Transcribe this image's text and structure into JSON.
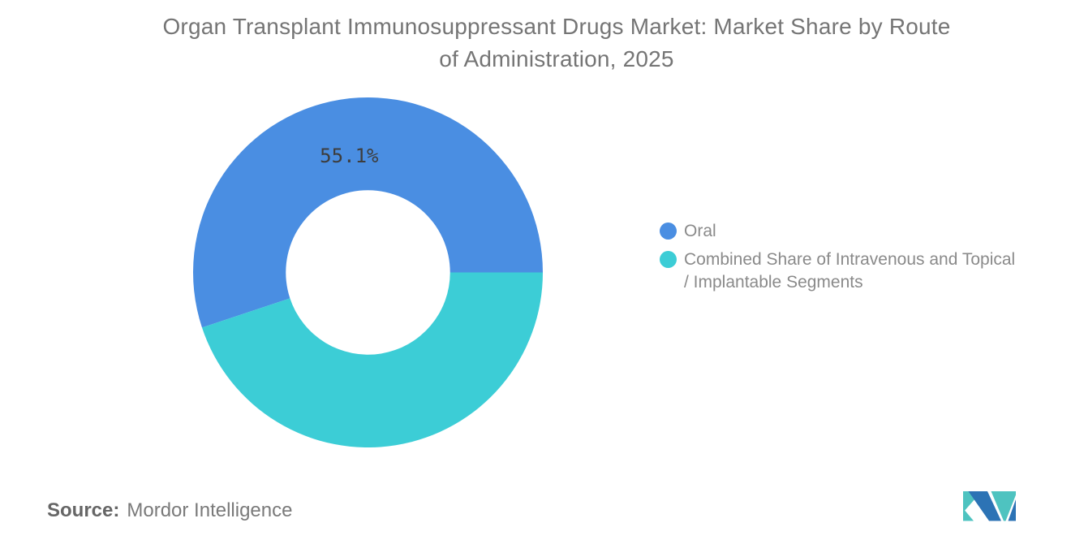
{
  "title": {
    "line1": "Organ Transplant Immunosuppressant Drugs Market: Market Share by Route",
    "line2": "of Administration, 2025"
  },
  "chart_data": {
    "type": "pie",
    "donut": true,
    "title": "Organ Transplant Immunosuppressant Drugs Market: Market Share by Route of Administration, 2025",
    "start_angle_deg": 0,
    "direction": "counterclockwise",
    "inner_radius_pct": 47,
    "legend_position": "right",
    "slices": [
      {
        "label": "Oral",
        "value": 55.1,
        "data_label": "55.1%",
        "show_data_label": true,
        "color": "#4A8EE2"
      },
      {
        "label": "Combined Share of Intravenous and Topical / Implantable Segments",
        "value": 44.9,
        "data_label": "",
        "show_data_label": false,
        "color": "#3CCDD6"
      }
    ]
  },
  "legend": {
    "items": [
      {
        "lines": [
          "Oral"
        ]
      },
      {
        "lines": [
          "Combined Share of Intravenous and Topical",
          "/ Implantable Segments"
        ]
      }
    ]
  },
  "footer": {
    "source_label": "Source:",
    "source_value": "Mordor Intelligence"
  },
  "branding": {
    "logo_name": "mordor-intelligence-logo",
    "logo_blue": "#2C73B5",
    "logo_teal": "#4EC3C0"
  },
  "colors": {
    "background": "#FFFFFF",
    "title_text": "#757575",
    "legend_text": "#8A8A8A",
    "data_label_text": "#3D3D3D",
    "source_label_text": "#666666",
    "source_value_text": "#7A7A7A"
  }
}
